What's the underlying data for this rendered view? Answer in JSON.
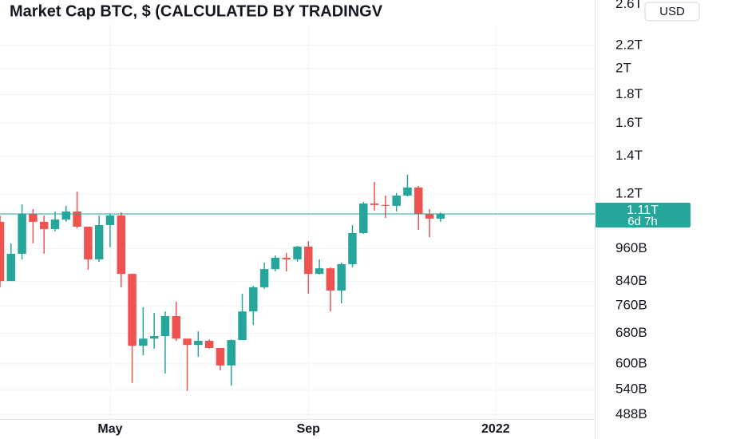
{
  "chart_data": {
    "type": "candlestick",
    "title": "Market Cap BTC, $ (CALCULATED BY TRADINGV",
    "currency_button": "USD",
    "log_scale": true,
    "grid": true,
    "up_color": "#26a69a",
    "down_color": "#ef5350",
    "categories": [
      null,
      null,
      null,
      null,
      null,
      null,
      null,
      null,
      null,
      null,
      null,
      null,
      null,
      null,
      null,
      null,
      null,
      null,
      null,
      null,
      null,
      null,
      null,
      null,
      null,
      null,
      null,
      null,
      null,
      null,
      null,
      null,
      null,
      null,
      null,
      null,
      null,
      null,
      null,
      null,
      null
    ],
    "open": [
      1071,
      841,
      940,
      1106,
      1071,
      1040,
      1081,
      1117,
      1050,
      919,
      1057,
      1099,
      866,
      646,
      665,
      672,
      729,
      665,
      648,
      659,
      640,
      596,
      661,
      743,
      820,
      883,
      925,
      919,
      968,
      866,
      886,
      809,
      901,
      1023,
      1154,
      1147,
      1143,
      1192,
      1232,
      1106,
      1085
    ],
    "high": [
      1099,
      981,
      1150,
      1128,
      1099,
      1117,
      1143,
      1212,
      1050,
      1099,
      1106,
      1113,
      866,
      756,
      739,
      743,
      773,
      665,
      685,
      663,
      640,
      663,
      799,
      825,
      907,
      934,
      943,
      971,
      990,
      919,
      889,
      907,
      1057,
      1162,
      1260,
      1192,
      1204,
      1298,
      1240,
      1128,
      1113
    ],
    "low": [
      820,
      841,
      919,
      981,
      940,
      1030,
      1071,
      1043,
      881,
      910,
      965,
      820,
      555,
      621,
      638,
      577,
      659,
      537,
      617,
      638,
      584,
      549,
      661,
      703,
      814,
      875,
      875,
      910,
      799,
      864,
      743,
      768,
      889,
      1020,
      1121,
      1088,
      1117,
      1188,
      1036,
      1006,
      1071
    ],
    "close": [
      841,
      940,
      1106,
      1071,
      1040,
      1081,
      1117,
      1050,
      919,
      1057,
      1099,
      866,
      646,
      665,
      672,
      729,
      665,
      648,
      659,
      640,
      596,
      661,
      743,
      820,
      883,
      925,
      919,
      968,
      866,
      886,
      809,
      901,
      1023,
      1154,
      1147,
      1143,
      1192,
      1232,
      1106,
      1085,
      1106
    ],
    "last_price_label": "1.11T",
    "countdown": "6d 7h",
    "xlim": [
      0,
      54
    ],
    "xticks": [
      {
        "value": 10,
        "label": "May"
      },
      {
        "value": 28,
        "label": "Sep"
      },
      {
        "value": 45,
        "label": "2022"
      }
    ],
    "ylim": [
      479,
      2647
    ],
    "yticks": [
      {
        "value": 2600,
        "label": "2.6T"
      },
      {
        "value": 2200,
        "label": "2.2T"
      },
      {
        "value": 2000,
        "label": "2T"
      },
      {
        "value": 1800,
        "label": "1.8T"
      },
      {
        "value": 1600,
        "label": "1.6T"
      },
      {
        "value": 1400,
        "label": "1.4T"
      },
      {
        "value": 1200,
        "label": "1.2T"
      },
      {
        "value": 960,
        "label": "960B"
      },
      {
        "value": 840,
        "label": "840B"
      },
      {
        "value": 760,
        "label": "760B"
      },
      {
        "value": 680,
        "label": "680B"
      },
      {
        "value": 600,
        "label": "600B"
      },
      {
        "value": 540,
        "label": "540B"
      },
      {
        "value": 488,
        "label": "488B"
      }
    ]
  }
}
